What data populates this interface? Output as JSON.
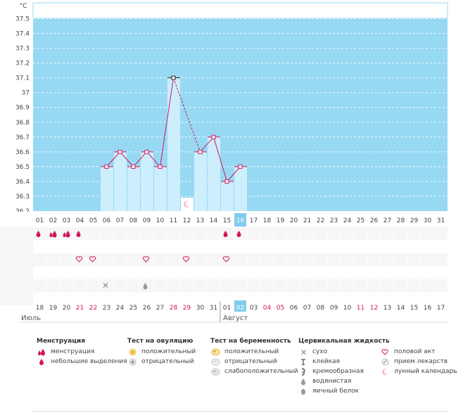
{
  "y_unit": "°C",
  "y_ticks": [
    "37.5",
    "37.4",
    "37.3",
    "37.2",
    "37.1",
    "37",
    "36.9",
    "36.8",
    "36.7",
    "36.6",
    "36.5",
    "36.4",
    "36.3",
    "36.2"
  ],
  "x_days": [
    "01",
    "02",
    "03",
    "04",
    "05",
    "06",
    "07",
    "08",
    "09",
    "10",
    "11",
    "12",
    "13",
    "14",
    "15",
    "16",
    "17",
    "18",
    "19",
    "20",
    "21",
    "22",
    "23",
    "24",
    "25",
    "26",
    "27",
    "28",
    "29",
    "30",
    "31"
  ],
  "today_index": 15,
  "temperatures": [
    null,
    null,
    null,
    null,
    null,
    36.5,
    36.6,
    36.5,
    36.6,
    36.5,
    37.1,
    null,
    36.6,
    36.7,
    36.4,
    36.5,
    null,
    null,
    null,
    null,
    null,
    null,
    null,
    null,
    null,
    null,
    null,
    null,
    null,
    null,
    null
  ],
  "temperature_marked_black": [
    10
  ],
  "dashed_segments": [
    [
      10,
      12
    ]
  ],
  "moon_day_index": 11,
  "colors": {
    "chart_bg": "#97d9f3",
    "bar_fill": "#cdeefc",
    "line": "#d0175d",
    "grid_row_a": "#f6f6f6",
    "grid_row_b": "#ffffff",
    "today_bg": "#7fcdee",
    "red_date": "#d0175d"
  },
  "rows": {
    "menstruation": {
      "0": "small-drop-icon",
      "1": "drops-icon",
      "2": "drops-icon",
      "3": "small-drop-icon",
      "14": "small-drop-icon",
      "15": "small-drop-icon"
    },
    "intercourse": {
      "3": "heart-icon",
      "4": "heart-icon",
      "8": "heart-icon",
      "11": "heart-icon",
      "14": "heart-icon"
    },
    "cervical_fluid": {
      "5": "dry-cross-icon",
      "8": "watery-drop-icon"
    }
  },
  "calendar_dates": [
    "18",
    "19",
    "20",
    "21",
    "22",
    "23",
    "24",
    "25",
    "26",
    "27",
    "28",
    "29",
    "30",
    "31",
    "01",
    "02",
    "03",
    "04",
    "05",
    "06",
    "07",
    "08",
    "09",
    "10",
    "11",
    "12",
    "13",
    "14",
    "15",
    "16",
    "17"
  ],
  "calendar_red": [
    3,
    4,
    10,
    11,
    17,
    18,
    24,
    25
  ],
  "month_labels": {
    "july": "Июль",
    "august": "Август"
  },
  "legend": {
    "menstruation": {
      "title": "Менструация",
      "items": [
        {
          "icon": "drops-icon",
          "label": "менструация"
        },
        {
          "icon": "small-drop-icon",
          "label": "небольшие выделения"
        }
      ]
    },
    "ovulation": {
      "title": "Тест на овуляцию",
      "items": [
        {
          "icon": "ovulation-positive-icon",
          "label": "положительный"
        },
        {
          "icon": "ovulation-negative-icon",
          "label": "отрицательный"
        }
      ]
    },
    "pregnancy": {
      "title": "Тест на беременность",
      "items": [
        {
          "icon": "pregnancy-positive-icon",
          "label": "положительный"
        },
        {
          "icon": "pregnancy-negative-icon",
          "label": "отрицательный"
        },
        {
          "icon": "pregnancy-weak-icon",
          "label": "слабоположительный"
        }
      ]
    },
    "cervical": {
      "title": "Цервикальная жидкость",
      "items": [
        {
          "icon": "dry-cross-icon",
          "label": "сухо"
        },
        {
          "icon": "sticky-icon",
          "label": "клейкая"
        },
        {
          "icon": "creamy-icon",
          "label": "кремообразная"
        },
        {
          "icon": "watery-drop-icon",
          "label": "водянистая"
        },
        {
          "icon": "egg-white-icon",
          "label": "яичный белок"
        }
      ]
    },
    "other": {
      "items": [
        {
          "icon": "heart-icon",
          "label": "половой акт"
        },
        {
          "icon": "medication-icon",
          "label": "прием лекарств"
        },
        {
          "icon": "moon-icon",
          "label": "лунный календарь"
        }
      ]
    }
  }
}
